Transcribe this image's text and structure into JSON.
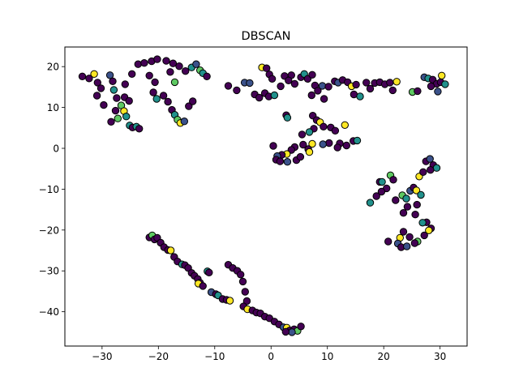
{
  "chart_data": {
    "type": "scatter",
    "title": "DBSCAN",
    "xlabel": "",
    "ylabel": "",
    "xlim": [
      -36.6,
      34.8
    ],
    "ylim": [
      -48.4,
      24.8
    ],
    "grid": false,
    "legend": "none",
    "x_ticks": [
      {
        "value": -30,
        "label": "−30"
      },
      {
        "value": -20,
        "label": "−20"
      },
      {
        "value": -10,
        "label": "−10"
      },
      {
        "value": 0,
        "label": "0"
      },
      {
        "value": 10,
        "label": "10"
      },
      {
        "value": 20,
        "label": "20"
      },
      {
        "value": 30,
        "label": "30"
      }
    ],
    "y_ticks": [
      {
        "value": 20,
        "label": "20"
      },
      {
        "value": 10,
        "label": "10"
      },
      {
        "value": 0,
        "label": "0"
      },
      {
        "value": -10,
        "label": "−10"
      },
      {
        "value": -20,
        "label": "−20"
      },
      {
        "value": -30,
        "label": "−30"
      },
      {
        "value": -40,
        "label": "−40"
      }
    ],
    "marker_edge_color": "#000000",
    "cluster_colors": [
      "#440154",
      "#3b528b",
      "#21918c",
      "#5ec962",
      "#fde725"
    ],
    "points": [
      {
        "x": -33.5,
        "y": 17.6,
        "c": 0
      },
      {
        "x": -32.3,
        "y": 17.1,
        "c": 0
      },
      {
        "x": -31.4,
        "y": 18.2,
        "c": 4
      },
      {
        "x": -30.8,
        "y": 16.1,
        "c": 0
      },
      {
        "x": -30.2,
        "y": 14.7,
        "c": 0
      },
      {
        "x": -30.9,
        "y": 12.9,
        "c": 0
      },
      {
        "x": -29.7,
        "y": 10.6,
        "c": 0
      },
      {
        "x": -28.6,
        "y": 17.9,
        "c": 1
      },
      {
        "x": -28.1,
        "y": 16.4,
        "c": 0
      },
      {
        "x": -27.9,
        "y": 14.3,
        "c": 2
      },
      {
        "x": -27.4,
        "y": 12.3,
        "c": 0
      },
      {
        "x": -27.6,
        "y": 9.2,
        "c": 0
      },
      {
        "x": -28.4,
        "y": 6.5,
        "c": 0
      },
      {
        "x": -27.2,
        "y": 7.3,
        "c": 3
      },
      {
        "x": -26.6,
        "y": 10.5,
        "c": 3
      },
      {
        "x": -26.1,
        "y": 9.1,
        "c": 4
      },
      {
        "x": -25.7,
        "y": 7.8,
        "c": 2
      },
      {
        "x": -25.1,
        "y": 5.6,
        "c": 2
      },
      {
        "x": -24.6,
        "y": 5.1,
        "c": 0
      },
      {
        "x": -23.9,
        "y": 5.3,
        "c": 2
      },
      {
        "x": -23.4,
        "y": 4.8,
        "c": 0
      },
      {
        "x": -26.0,
        "y": 12.5,
        "c": 0
      },
      {
        "x": -25.2,
        "y": 11.6,
        "c": 0
      },
      {
        "x": -24.7,
        "y": 18.2,
        "c": 0
      },
      {
        "x": -25.9,
        "y": 15.7,
        "c": 0
      },
      {
        "x": -23.6,
        "y": 20.6,
        "c": 0
      },
      {
        "x": -22.5,
        "y": 20.9,
        "c": 0
      },
      {
        "x": -21.2,
        "y": 21.3,
        "c": 0
      },
      {
        "x": -20.2,
        "y": 21.8,
        "c": 0
      },
      {
        "x": -21.6,
        "y": 17.8,
        "c": 0
      },
      {
        "x": -20.6,
        "y": 16.2,
        "c": 0
      },
      {
        "x": -20.9,
        "y": 13.7,
        "c": 0
      },
      {
        "x": -20.3,
        "y": 12.1,
        "c": 2
      },
      {
        "x": -19.1,
        "y": 12.9,
        "c": 0
      },
      {
        "x": -18.3,
        "y": 11.4,
        "c": 0
      },
      {
        "x": -17.6,
        "y": 9.4,
        "c": 0
      },
      {
        "x": -17.1,
        "y": 8.2,
        "c": 2
      },
      {
        "x": -16.6,
        "y": 7.0,
        "c": 3
      },
      {
        "x": -16.1,
        "y": 6.2,
        "c": 4
      },
      {
        "x": -15.4,
        "y": 6.6,
        "c": 1
      },
      {
        "x": -14.6,
        "y": 10.3,
        "c": 0
      },
      {
        "x": -13.9,
        "y": 11.5,
        "c": 0
      },
      {
        "x": -18.6,
        "y": 21.4,
        "c": 0
      },
      {
        "x": -17.4,
        "y": 20.8,
        "c": 0
      },
      {
        "x": -16.3,
        "y": 20.1,
        "c": 0
      },
      {
        "x": -17.9,
        "y": 18.7,
        "c": 0
      },
      {
        "x": -17.1,
        "y": 16.2,
        "c": 3
      },
      {
        "x": -15.2,
        "y": 18.9,
        "c": 0
      },
      {
        "x": -14.1,
        "y": 19.8,
        "c": 2
      },
      {
        "x": -13.3,
        "y": 20.6,
        "c": 1
      },
      {
        "x": -12.6,
        "y": 19.1,
        "c": 3
      },
      {
        "x": -12.1,
        "y": 18.4,
        "c": 2
      },
      {
        "x": -11.4,
        "y": 17.6,
        "c": 0
      },
      {
        "x": -7.6,
        "y": 15.3,
        "c": 0
      },
      {
        "x": -6.1,
        "y": 14.2,
        "c": 0
      },
      {
        "x": -4.7,
        "y": 16.1,
        "c": 1
      },
      {
        "x": -3.8,
        "y": 16.0,
        "c": 1
      },
      {
        "x": -2.9,
        "y": 13.2,
        "c": 0
      },
      {
        "x": -2.1,
        "y": 12.4,
        "c": 0
      },
      {
        "x": -1.6,
        "y": 19.8,
        "c": 4
      },
      {
        "x": -0.8,
        "y": 19.6,
        "c": 0
      },
      {
        "x": -0.3,
        "y": 18.1,
        "c": 0
      },
      {
        "x": 0.2,
        "y": 17.0,
        "c": 0
      },
      {
        "x": -1.1,
        "y": 13.5,
        "c": 0
      },
      {
        "x": -0.4,
        "y": 12.7,
        "c": 0
      },
      {
        "x": 0.6,
        "y": 13.0,
        "c": 2
      },
      {
        "x": 1.7,
        "y": 15.2,
        "c": 0
      },
      {
        "x": 2.4,
        "y": 17.7,
        "c": 0
      },
      {
        "x": 3.6,
        "y": 17.9,
        "c": 0
      },
      {
        "x": 3.1,
        "y": 16.6,
        "c": 0
      },
      {
        "x": 4.2,
        "y": 15.8,
        "c": 0
      },
      {
        "x": 5.3,
        "y": 17.4,
        "c": 0
      },
      {
        "x": 5.9,
        "y": 18.2,
        "c": 2
      },
      {
        "x": 6.5,
        "y": 17.0,
        "c": 0
      },
      {
        "x": 7.3,
        "y": 18.0,
        "c": 0
      },
      {
        "x": 7.8,
        "y": 15.4,
        "c": 0
      },
      {
        "x": 7.2,
        "y": 13.0,
        "c": 0
      },
      {
        "x": 8.3,
        "y": 14.1,
        "c": 0
      },
      {
        "x": 9.4,
        "y": 12.1,
        "c": 0
      },
      {
        "x": 9.1,
        "y": 15.3,
        "c": 1
      },
      {
        "x": 10.2,
        "y": 15.1,
        "c": 0
      },
      {
        "x": 11.3,
        "y": 16.4,
        "c": 0
      },
      {
        "x": 11.9,
        "y": 16.1,
        "c": 1
      },
      {
        "x": 12.7,
        "y": 16.7,
        "c": 0
      },
      {
        "x": 13.6,
        "y": 16.2,
        "c": 0
      },
      {
        "x": 14.3,
        "y": 15.2,
        "c": 4
      },
      {
        "x": 15.1,
        "y": 15.6,
        "c": 0
      },
      {
        "x": 14.7,
        "y": 13.2,
        "c": 0
      },
      {
        "x": 15.8,
        "y": 12.7,
        "c": 2
      },
      {
        "x": 16.9,
        "y": 16.1,
        "c": 0
      },
      {
        "x": 17.6,
        "y": 14.6,
        "c": 0
      },
      {
        "x": 18.4,
        "y": 16.0,
        "c": 0
      },
      {
        "x": 19.3,
        "y": 16.2,
        "c": 0
      },
      {
        "x": 20.2,
        "y": 15.7,
        "c": 0
      },
      {
        "x": 21.1,
        "y": 16.1,
        "c": 0
      },
      {
        "x": 22.3,
        "y": 16.3,
        "c": 4
      },
      {
        "x": 21.6,
        "y": 14.2,
        "c": 0
      },
      {
        "x": 25.1,
        "y": 13.8,
        "c": 3
      },
      {
        "x": 26.0,
        "y": 14.0,
        "c": 0
      },
      {
        "x": 27.2,
        "y": 17.4,
        "c": 1
      },
      {
        "x": 27.9,
        "y": 17.1,
        "c": 2
      },
      {
        "x": 28.7,
        "y": 16.8,
        "c": 0
      },
      {
        "x": 29.4,
        "y": 15.8,
        "c": 0
      },
      {
        "x": 30.1,
        "y": 16.2,
        "c": 0
      },
      {
        "x": 30.9,
        "y": 15.7,
        "c": 2
      },
      {
        "x": 29.6,
        "y": 13.9,
        "c": 1
      },
      {
        "x": 30.3,
        "y": 17.8,
        "c": 4
      },
      {
        "x": 28.4,
        "y": 15.2,
        "c": 0
      },
      {
        "x": 2.7,
        "y": 8.1,
        "c": 0
      },
      {
        "x": 2.9,
        "y": 7.5,
        "c": 2
      },
      {
        "x": 7.4,
        "y": 8.0,
        "c": 0
      },
      {
        "x": 8.1,
        "y": 6.9,
        "c": 0
      },
      {
        "x": 8.7,
        "y": 6.4,
        "c": 4
      },
      {
        "x": 9.3,
        "y": 5.3,
        "c": 0
      },
      {
        "x": 7.6,
        "y": 4.8,
        "c": 0
      },
      {
        "x": 6.8,
        "y": 4.0,
        "c": 2
      },
      {
        "x": 5.5,
        "y": 3.4,
        "c": 0
      },
      {
        "x": 10.6,
        "y": 5.1,
        "c": 0
      },
      {
        "x": 11.4,
        "y": 4.3,
        "c": 0
      },
      {
        "x": 13.1,
        "y": 5.7,
        "c": 4
      },
      {
        "x": 12.2,
        "y": 1.2,
        "c": 0
      },
      {
        "x": 13.4,
        "y": 0.7,
        "c": 0
      },
      {
        "x": 14.6,
        "y": 1.8,
        "c": 0
      },
      {
        "x": 15.3,
        "y": 1.9,
        "c": 2
      },
      {
        "x": 11.8,
        "y": 0.2,
        "c": 0
      },
      {
        "x": 10.3,
        "y": 1.3,
        "c": 0
      },
      {
        "x": 9.2,
        "y": 1.0,
        "c": 1
      },
      {
        "x": 7.3,
        "y": 1.1,
        "c": 4
      },
      {
        "x": 6.6,
        "y": -0.2,
        "c": 0
      },
      {
        "x": 5.7,
        "y": 0.9,
        "c": 0
      },
      {
        "x": 6.8,
        "y": -0.9,
        "c": 4
      },
      {
        "x": 4.2,
        "y": 0.3,
        "c": 0
      },
      {
        "x": 3.6,
        "y": -0.4,
        "c": 0
      },
      {
        "x": 2.8,
        "y": -1.4,
        "c": 4
      },
      {
        "x": 1.9,
        "y": -1.6,
        "c": 0
      },
      {
        "x": 1.1,
        "y": -1.9,
        "c": 1
      },
      {
        "x": 0.4,
        "y": 0.6,
        "c": 0
      },
      {
        "x": 0.9,
        "y": -2.8,
        "c": 0
      },
      {
        "x": 1.6,
        "y": -3.2,
        "c": 0
      },
      {
        "x": 2.9,
        "y": -3.3,
        "c": 1
      },
      {
        "x": 4.5,
        "y": -2.9,
        "c": 0
      },
      {
        "x": 5.2,
        "y": -2.1,
        "c": 0
      },
      {
        "x": 19.3,
        "y": -8.2,
        "c": 0
      },
      {
        "x": 19.7,
        "y": -8.2,
        "c": 2
      },
      {
        "x": 21.2,
        "y": -6.6,
        "c": 3
      },
      {
        "x": 21.7,
        "y": -7.7,
        "c": 0
      },
      {
        "x": 20.5,
        "y": -9.8,
        "c": 0
      },
      {
        "x": 19.6,
        "y": -10.6,
        "c": 0
      },
      {
        "x": 18.7,
        "y": -11.7,
        "c": 0
      },
      {
        "x": 17.6,
        "y": -13.3,
        "c": 2
      },
      {
        "x": 22.1,
        "y": -12.7,
        "c": 0
      },
      {
        "x": 23.3,
        "y": -11.5,
        "c": 3
      },
      {
        "x": 24.0,
        "y": -12.3,
        "c": 2
      },
      {
        "x": 24.7,
        "y": -10.4,
        "c": 1
      },
      {
        "x": 25.3,
        "y": -9.6,
        "c": 0
      },
      {
        "x": 25.8,
        "y": -10.3,
        "c": 4
      },
      {
        "x": 26.6,
        "y": -11.4,
        "c": 2
      },
      {
        "x": 25.9,
        "y": -13.8,
        "c": 0
      },
      {
        "x": 24.2,
        "y": -14.3,
        "c": 0
      },
      {
        "x": 23.5,
        "y": -15.8,
        "c": 0
      },
      {
        "x": 25.6,
        "y": -16.2,
        "c": 0
      },
      {
        "x": 26.3,
        "y": -6.9,
        "c": 4
      },
      {
        "x": 27.0,
        "y": -5.8,
        "c": 0
      },
      {
        "x": 27.5,
        "y": -3.2,
        "c": 0
      },
      {
        "x": 28.2,
        "y": -2.6,
        "c": 1
      },
      {
        "x": 28.8,
        "y": -4.1,
        "c": 0
      },
      {
        "x": 29.4,
        "y": -4.8,
        "c": 2
      },
      {
        "x": 28.3,
        "y": -5.3,
        "c": 0
      },
      {
        "x": 27.6,
        "y": -18.1,
        "c": 0
      },
      {
        "x": 28.4,
        "y": -19.6,
        "c": 0
      },
      {
        "x": 28.0,
        "y": -20.1,
        "c": 4
      },
      {
        "x": 27.2,
        "y": -21.3,
        "c": 0
      },
      {
        "x": 26.0,
        "y": -22.8,
        "c": 3
      },
      {
        "x": 25.5,
        "y": -23.2,
        "c": 0
      },
      {
        "x": 24.6,
        "y": -21.7,
        "c": 0
      },
      {
        "x": 23.5,
        "y": -20.4,
        "c": 0
      },
      {
        "x": 22.9,
        "y": -21.9,
        "c": 4
      },
      {
        "x": 22.5,
        "y": -23.3,
        "c": 1
      },
      {
        "x": 23.1,
        "y": -24.2,
        "c": 0
      },
      {
        "x": 24.1,
        "y": -24.0,
        "c": 1
      },
      {
        "x": 20.8,
        "y": -22.8,
        "c": 0
      },
      {
        "x": 26.9,
        "y": -18.2,
        "c": 2
      },
      {
        "x": -21.6,
        "y": -21.8,
        "c": 0
      },
      {
        "x": -21.1,
        "y": -21.3,
        "c": 3
      },
      {
        "x": -20.7,
        "y": -22.3,
        "c": 0
      },
      {
        "x": -20.2,
        "y": -21.9,
        "c": 0
      },
      {
        "x": -19.6,
        "y": -23.1,
        "c": 0
      },
      {
        "x": -19.0,
        "y": -24.2,
        "c": 0
      },
      {
        "x": -18.3,
        "y": -24.9,
        "c": 0
      },
      {
        "x": -17.8,
        "y": -25.0,
        "c": 4
      },
      {
        "x": -17.2,
        "y": -26.6,
        "c": 0
      },
      {
        "x": -16.6,
        "y": -27.7,
        "c": 0
      },
      {
        "x": -15.8,
        "y": -28.4,
        "c": 2
      },
      {
        "x": -15.3,
        "y": -28.6,
        "c": 0
      },
      {
        "x": -14.7,
        "y": -29.3,
        "c": 0
      },
      {
        "x": -14.1,
        "y": -30.5,
        "c": 0
      },
      {
        "x": -13.6,
        "y": -31.2,
        "c": 0
      },
      {
        "x": -13.0,
        "y": -32.0,
        "c": 0
      },
      {
        "x": -12.6,
        "y": -32.9,
        "c": 0
      },
      {
        "x": -12.9,
        "y": -33.1,
        "c": 4
      },
      {
        "x": -12.1,
        "y": -33.7,
        "c": 0
      },
      {
        "x": -11.3,
        "y": -30.1,
        "c": 2
      },
      {
        "x": -11.0,
        "y": -30.4,
        "c": 0
      },
      {
        "x": -10.6,
        "y": -35.2,
        "c": 1
      },
      {
        "x": -9.8,
        "y": -35.7,
        "c": 0
      },
      {
        "x": -9.4,
        "y": -36.0,
        "c": 2
      },
      {
        "x": -8.6,
        "y": -36.9,
        "c": 0
      },
      {
        "x": -7.9,
        "y": -37.1,
        "c": 0
      },
      {
        "x": -7.3,
        "y": -37.3,
        "c": 4
      },
      {
        "x": -7.6,
        "y": -28.5,
        "c": 0
      },
      {
        "x": -6.8,
        "y": -29.3,
        "c": 0
      },
      {
        "x": -6.0,
        "y": -30.0,
        "c": 0
      },
      {
        "x": -5.4,
        "y": -30.9,
        "c": 0
      },
      {
        "x": -5.0,
        "y": -32.6,
        "c": 0
      },
      {
        "x": -4.6,
        "y": -35.1,
        "c": 0
      },
      {
        "x": -4.3,
        "y": -37.4,
        "c": 0
      },
      {
        "x": -4.9,
        "y": -38.7,
        "c": 0
      },
      {
        "x": -4.2,
        "y": -39.4,
        "c": 4
      },
      {
        "x": -3.3,
        "y": -39.7,
        "c": 0
      },
      {
        "x": -2.6,
        "y": -40.2,
        "c": 0
      },
      {
        "x": -1.9,
        "y": -40.4,
        "c": 0
      },
      {
        "x": -1.1,
        "y": -41.2,
        "c": 0
      },
      {
        "x": -0.3,
        "y": -41.6,
        "c": 0
      },
      {
        "x": 0.6,
        "y": -42.4,
        "c": 0
      },
      {
        "x": 1.4,
        "y": -43.1,
        "c": 0
      },
      {
        "x": 2.2,
        "y": -43.8,
        "c": 1
      },
      {
        "x": 2.8,
        "y": -43.9,
        "c": 4
      },
      {
        "x": 3.3,
        "y": -44.6,
        "c": 0
      },
      {
        "x": 4.1,
        "y": -44.3,
        "c": 0
      },
      {
        "x": 4.7,
        "y": -44.7,
        "c": 3
      },
      {
        "x": 5.3,
        "y": -43.6,
        "c": 0
      },
      {
        "x": 3.7,
        "y": -45.0,
        "c": 1
      },
      {
        "x": 2.6,
        "y": -44.9,
        "c": 0
      }
    ]
  }
}
